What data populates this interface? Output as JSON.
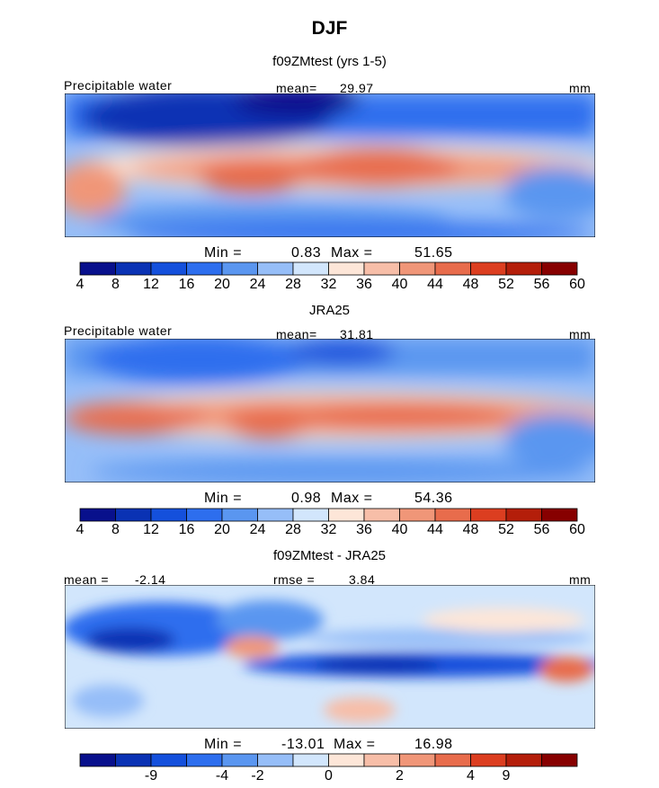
{
  "chart_data": {
    "type": "heatmap",
    "title": "DJF",
    "colors": [
      "#08108c",
      "#0a32b4",
      "#1450dc",
      "#2d6eee",
      "#5a96f0",
      "#96bef8",
      "#d2e6fc",
      "#fde6d8",
      "#f7bea8",
      "#f09678",
      "#e86c4c",
      "#dc3e20",
      "#b41e0a",
      "#870000"
    ],
    "panels": [
      {
        "title": "f09ZMtest (yrs 1-5)",
        "variable": "Precipitable water",
        "mean_label": "mean=",
        "mean_value": "29.97",
        "units": "mm",
        "min_label": "Min =",
        "min_value": "0.83",
        "max_label": "Max =",
        "max_value": "51.65",
        "colorbar_ticks": [
          "4",
          "8",
          "12",
          "16",
          "20",
          "24",
          "28",
          "32",
          "36",
          "40",
          "44",
          "48",
          "52",
          "56",
          "60"
        ],
        "levels": [
          4,
          8,
          12,
          16,
          20,
          24,
          28,
          32,
          36,
          40,
          44,
          48,
          52,
          56,
          60
        ]
      },
      {
        "title": "JRA25",
        "variable": "Precipitable water",
        "mean_label": "mean=",
        "mean_value": "31.81",
        "units": "mm",
        "min_label": "Min =",
        "min_value": "0.98",
        "max_label": "Max =",
        "max_value": "54.36",
        "colorbar_ticks": [
          "4",
          "8",
          "12",
          "16",
          "20",
          "24",
          "28",
          "32",
          "36",
          "40",
          "44",
          "48",
          "52",
          "56",
          "60"
        ],
        "levels": [
          4,
          8,
          12,
          16,
          20,
          24,
          28,
          32,
          36,
          40,
          44,
          48,
          52,
          56,
          60
        ]
      },
      {
        "title": "f09ZMtest - JRA25",
        "mean_label": "mean =",
        "mean_value": "-2.14",
        "rmse_label": "rmse =",
        "rmse_value": "3.84",
        "units": "mm",
        "min_label": "Min =",
        "min_value": "-13.01",
        "max_label": "Max =",
        "max_value": "16.98",
        "colorbar_ticks": [
          "-9",
          "-4",
          "-2",
          "0",
          "2",
          "4",
          "9"
        ],
        "levels": [
          -9,
          -4,
          -2,
          0,
          2,
          4,
          9
        ]
      }
    ]
  }
}
